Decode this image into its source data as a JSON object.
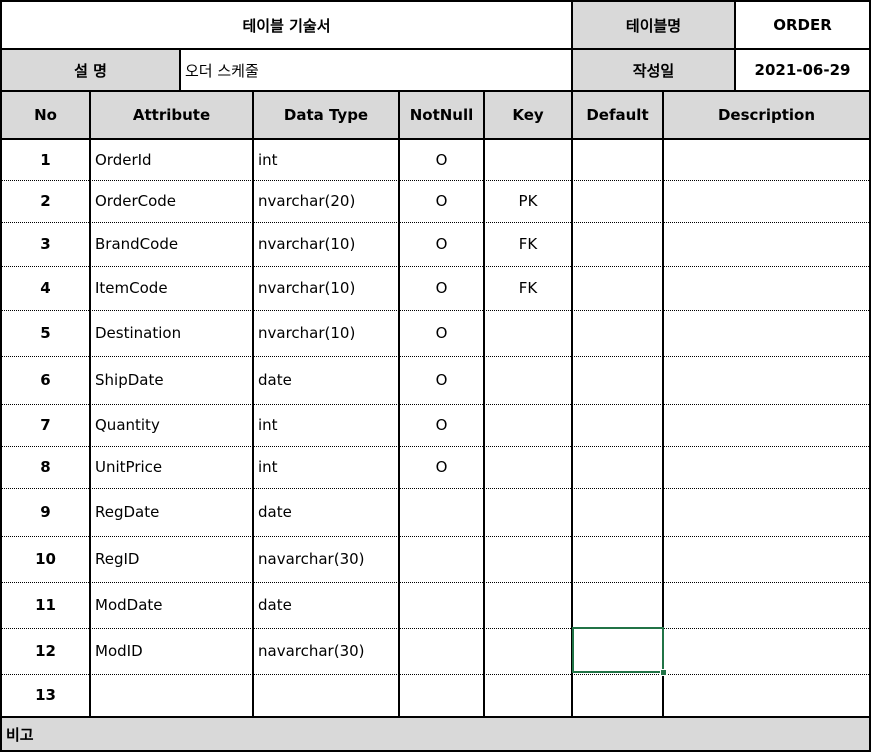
{
  "title_block": {
    "doc_title": "테이블 기술서",
    "table_name_label": "테이블명",
    "table_name_value": "ORDER",
    "description_label": "설  명",
    "description_value": "오더 스케줄",
    "created_label": "작성일",
    "created_value": "2021-06-29"
  },
  "columns": [
    "No",
    "Attribute",
    "Data Type",
    "NotNull",
    "Key",
    "Default",
    "Description"
  ],
  "rows": [
    {
      "no": "1",
      "attribute": "OrderId",
      "type": "int",
      "notnull": "O",
      "key": ""
    },
    {
      "no": "2",
      "attribute": "OrderCode",
      "type": "nvarchar(20)",
      "notnull": "O",
      "key": "PK"
    },
    {
      "no": "3",
      "attribute": "BrandCode",
      "type": "nvarchar(10)",
      "notnull": "O",
      "key": "FK"
    },
    {
      "no": "4",
      "attribute": "ItemCode",
      "type": "nvarchar(10)",
      "notnull": "O",
      "key": "FK"
    },
    {
      "no": "5",
      "attribute": "Destination",
      "type": "nvarchar(10)",
      "notnull": "O",
      "key": ""
    },
    {
      "no": "6",
      "attribute": "ShipDate",
      "type": "date",
      "notnull": "O",
      "key": ""
    },
    {
      "no": "7",
      "attribute": "Quantity",
      "type": "int",
      "notnull": "O",
      "key": ""
    },
    {
      "no": "8",
      "attribute": "UnitPrice",
      "type": "int",
      "notnull": "O",
      "key": ""
    },
    {
      "no": "9",
      "attribute": "RegDate",
      "type": "date",
      "notnull": "",
      "key": ""
    },
    {
      "no": "10",
      "attribute": "RegID",
      "type": "navarchar(30)",
      "notnull": "",
      "key": ""
    },
    {
      "no": "11",
      "attribute": "ModDate",
      "type": "date",
      "notnull": "",
      "key": ""
    },
    {
      "no": "12",
      "attribute": "ModID",
      "type": "navarchar(30)",
      "notnull": "",
      "key": ""
    },
    {
      "no": "13",
      "attribute": "",
      "type": "",
      "notnull": "",
      "key": ""
    }
  ],
  "footer": {
    "remarks_label": "비고"
  }
}
